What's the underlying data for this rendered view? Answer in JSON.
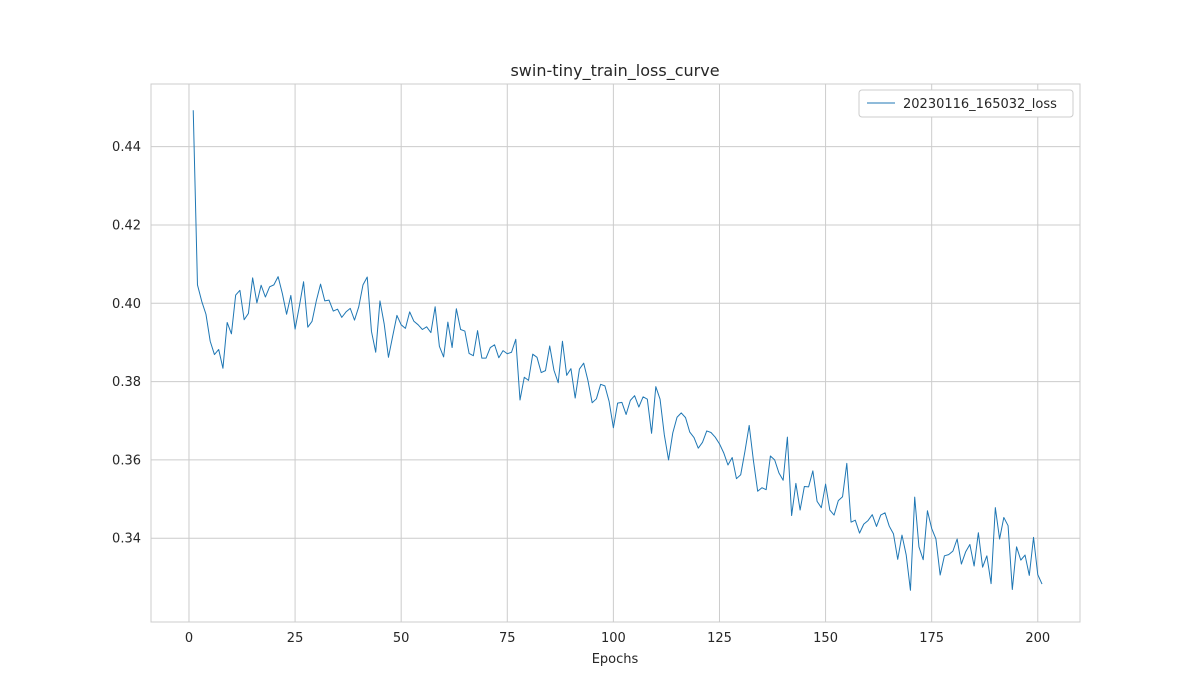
{
  "chart_data": {
    "type": "line",
    "title": "swin-tiny_train_loss_curve",
    "xlabel": "Epochs",
    "ylabel": "",
    "xlim": [
      -8.95,
      209.95
    ],
    "ylim": [
      0.3186,
      0.456
    ],
    "xticks": [
      0,
      25,
      50,
      75,
      100,
      125,
      150,
      175,
      200
    ],
    "yticks": [
      0.34,
      0.36,
      0.38,
      0.4,
      0.42,
      0.44
    ],
    "ytick_labels": [
      "0.34",
      "0.36",
      "0.38",
      "0.40",
      "0.42",
      "0.44"
    ],
    "grid": true,
    "legend_position": "top-right",
    "series": [
      {
        "name": "20230116_165032_loss",
        "color": "#1f77b4",
        "x_start": 1,
        "x_step": 1,
        "values": [
          0.4493,
          0.4047,
          0.4005,
          0.3972,
          0.3903,
          0.3869,
          0.3882,
          0.3834,
          0.3951,
          0.3922,
          0.4021,
          0.4033,
          0.3958,
          0.3974,
          0.4065,
          0.4001,
          0.4046,
          0.4016,
          0.4042,
          0.4047,
          0.4068,
          0.4025,
          0.3972,
          0.402,
          0.3934,
          0.3992,
          0.4055,
          0.3939,
          0.3954,
          0.4006,
          0.4049,
          0.4006,
          0.4008,
          0.398,
          0.3985,
          0.3964,
          0.3978,
          0.3987,
          0.3957,
          0.3991,
          0.4047,
          0.4067,
          0.3928,
          0.3875,
          0.4006,
          0.3947,
          0.3862,
          0.3916,
          0.3969,
          0.3945,
          0.3936,
          0.3978,
          0.3954,
          0.3945,
          0.3933,
          0.394,
          0.3925,
          0.3991,
          0.389,
          0.3863,
          0.3952,
          0.3887,
          0.3986,
          0.3933,
          0.3929,
          0.3872,
          0.3866,
          0.393,
          0.386,
          0.386,
          0.3887,
          0.3894,
          0.3861,
          0.3879,
          0.3871,
          0.3875,
          0.3908,
          0.3753,
          0.3811,
          0.3803,
          0.387,
          0.3862,
          0.3823,
          0.3828,
          0.3891,
          0.3829,
          0.3797,
          0.3903,
          0.3816,
          0.3833,
          0.3758,
          0.3832,
          0.3847,
          0.3803,
          0.3746,
          0.3756,
          0.3793,
          0.3789,
          0.3749,
          0.3682,
          0.3745,
          0.3747,
          0.3716,
          0.3752,
          0.3764,
          0.3735,
          0.3761,
          0.3755,
          0.3668,
          0.3787,
          0.3755,
          0.3664,
          0.36,
          0.3669,
          0.3709,
          0.372,
          0.3708,
          0.3671,
          0.3657,
          0.363,
          0.3645,
          0.3674,
          0.367,
          0.3658,
          0.3641,
          0.3618,
          0.3587,
          0.3606,
          0.3552,
          0.3562,
          0.3622,
          0.3688,
          0.3598,
          0.352,
          0.3529,
          0.3524,
          0.361,
          0.36,
          0.3567,
          0.3548,
          0.3658,
          0.3458,
          0.354,
          0.3472,
          0.3532,
          0.3531,
          0.3572,
          0.3494,
          0.3478,
          0.3538,
          0.3472,
          0.3459,
          0.3496,
          0.3506,
          0.3591,
          0.3441,
          0.3446,
          0.3413,
          0.3436,
          0.3445,
          0.346,
          0.343,
          0.3459,
          0.3465,
          0.3431,
          0.3411,
          0.3346,
          0.3408,
          0.3357,
          0.3267,
          0.3505,
          0.3378,
          0.3345,
          0.347,
          0.3425,
          0.3398,
          0.3306,
          0.3355,
          0.3358,
          0.3367,
          0.3398,
          0.3334,
          0.3365,
          0.3384,
          0.3329,
          0.3414,
          0.3326,
          0.3355,
          0.3284,
          0.3478,
          0.3398,
          0.3453,
          0.3432,
          0.3269,
          0.3378,
          0.3344,
          0.3357,
          0.3305,
          0.3402,
          0.3307,
          0.3283
        ]
      }
    ]
  }
}
